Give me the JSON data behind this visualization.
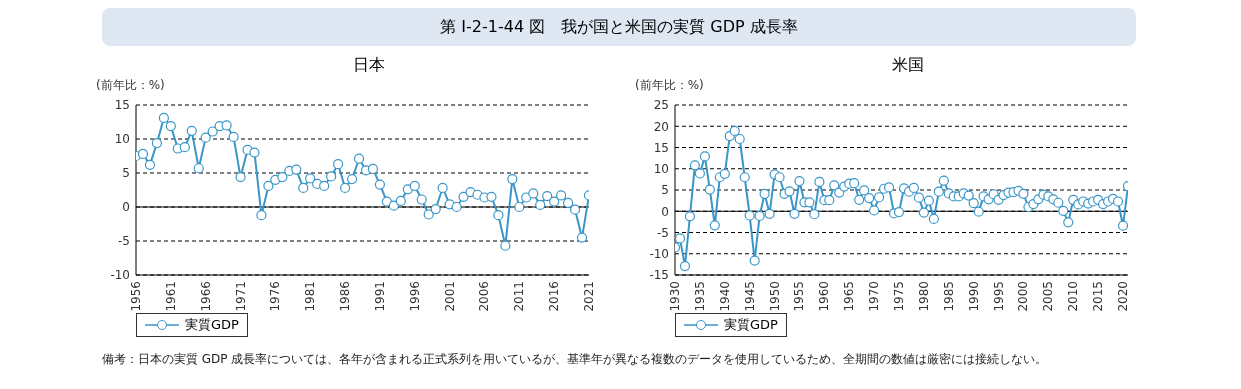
{
  "chart_data": [
    {
      "type": "other",
      "title": "第 Ⅰ-2-1-44 図　我が国と米国の実質 GDP 成長率",
      "annotations": [
        "備考：日本の実質 GDP 成長率については、各年が含まれる正式系列を用いているが、基準年が異なる複数のデータを使用しているため、全期間の数値は厳密には接続しない。"
      ]
    },
    {
      "type": "line",
      "title": "日本",
      "ylabel": "(前年比：%)",
      "marker": "circle",
      "grid": "y",
      "legend": "bottom left",
      "x": [
        1956,
        1957,
        1958,
        1959,
        1960,
        1961,
        1962,
        1963,
        1964,
        1965,
        1966,
        1967,
        1968,
        1969,
        1970,
        1971,
        1972,
        1973,
        1974,
        1975,
        1976,
        1977,
        1978,
        1979,
        1980,
        1981,
        1982,
        1983,
        1984,
        1985,
        1986,
        1987,
        1988,
        1989,
        1990,
        1991,
        1992,
        1993,
        1994,
        1995,
        1996,
        1997,
        1998,
        1999,
        2000,
        2001,
        2002,
        2003,
        2004,
        2005,
        2006,
        2007,
        2008,
        2009,
        2010,
        2011,
        2012,
        2013,
        2014,
        2015,
        2016,
        2017,
        2018,
        2019,
        2020,
        2021
      ],
      "series": [
        {
          "name": "実質GDP",
          "color": "#3a96c8",
          "values": [
            7.5,
            7.8,
            6.2,
            9.4,
            13.1,
            11.9,
            8.6,
            8.8,
            11.2,
            5.7,
            10.2,
            11.1,
            11.9,
            12.0,
            10.3,
            4.4,
            8.4,
            8.0,
            -1.2,
            3.1,
            4.0,
            4.4,
            5.3,
            5.5,
            2.8,
            4.2,
            3.4,
            3.1,
            4.5,
            6.3,
            2.8,
            4.1,
            7.1,
            5.4,
            5.6,
            3.3,
            0.8,
            0.2,
            0.9,
            2.6,
            3.1,
            1.1,
            -1.1,
            -0.3,
            2.8,
            0.4,
            0.0,
            1.5,
            2.2,
            1.8,
            1.4,
            1.5,
            -1.2,
            -5.7,
            4.1,
            0.0,
            1.4,
            2.0,
            0.3,
            1.6,
            0.8,
            1.7,
            0.6,
            -0.4,
            -4.5,
            1.7
          ]
        }
      ],
      "xlim": [
        1956,
        2021
      ],
      "xticks": [
        1956,
        1961,
        1966,
        1971,
        1976,
        1981,
        1986,
        1991,
        1996,
        2001,
        2006,
        2011,
        2016,
        2021
      ],
      "ylim": [
        -10,
        15
      ],
      "yticks": [
        -10,
        -5,
        0,
        5,
        10,
        15
      ],
      "ref_lines": [
        {
          "axis": "y",
          "value": 0,
          "color": "#000000",
          "line_style": "solid"
        }
      ]
    },
    {
      "type": "line",
      "title": "米国",
      "ylabel": "(前年比：%)",
      "marker": "circle",
      "grid": "y",
      "legend": "bottom left",
      "x": [
        1930,
        1931,
        1932,
        1933,
        1934,
        1935,
        1936,
        1937,
        1938,
        1939,
        1940,
        1941,
        1942,
        1943,
        1944,
        1945,
        1946,
        1947,
        1948,
        1949,
        1950,
        1951,
        1952,
        1953,
        1954,
        1955,
        1956,
        1957,
        1958,
        1959,
        1960,
        1961,
        1962,
        1963,
        1964,
        1965,
        1966,
        1967,
        1968,
        1969,
        1970,
        1971,
        1972,
        1973,
        1974,
        1975,
        1976,
        1977,
        1978,
        1979,
        1980,
        1981,
        1982,
        1983,
        1984,
        1985,
        1986,
        1987,
        1988,
        1989,
        1990,
        1991,
        1992,
        1993,
        1994,
        1995,
        1996,
        1997,
        1998,
        1999,
        2000,
        2001,
        2002,
        2003,
        2004,
        2005,
        2006,
        2007,
        2008,
        2009,
        2010,
        2011,
        2012,
        2013,
        2014,
        2015,
        2016,
        2017,
        2018,
        2019,
        2020,
        2021
      ],
      "series": [
        {
          "name": "実質GDP",
          "color": "#3a96c8",
          "values": [
            -8.5,
            -6.4,
            -12.9,
            -1.2,
            10.8,
            8.9,
            12.9,
            5.1,
            -3.3,
            8.0,
            8.8,
            17.7,
            18.9,
            17.0,
            8.0,
            -1.0,
            -11.6,
            -1.1,
            4.1,
            -0.6,
            8.7,
            8.0,
            4.1,
            4.7,
            -0.6,
            7.1,
            2.1,
            2.1,
            -0.7,
            6.9,
            2.6,
            2.6,
            6.1,
            4.4,
            5.8,
            6.5,
            6.6,
            2.7,
            4.9,
            3.1,
            0.2,
            3.3,
            5.3,
            5.6,
            -0.5,
            -0.2,
            5.4,
            4.6,
            5.5,
            3.2,
            -0.3,
            2.5,
            -1.8,
            4.6,
            7.2,
            4.2,
            3.5,
            3.5,
            4.2,
            3.7,
            1.9,
            -0.1,
            3.5,
            2.8,
            4.0,
            2.7,
            3.8,
            4.4,
            4.5,
            4.8,
            4.1,
            1.0,
            1.7,
            2.8,
            3.9,
            3.5,
            2.8,
            2.0,
            0.1,
            -2.6,
            2.7,
            1.6,
            2.3,
            1.8,
            2.3,
            2.7,
            1.7,
            2.3,
            2.9,
            2.3,
            -3.4,
            5.9
          ]
        }
      ],
      "xlim": [
        1930,
        2021
      ],
      "xticks": [
        1930,
        1935,
        1940,
        1945,
        1950,
        1955,
        1960,
        1965,
        1970,
        1975,
        1980,
        1985,
        1990,
        1995,
        2000,
        2005,
        2010,
        2015,
        2020
      ],
      "ylim": [
        -15,
        25
      ],
      "yticks": [
        -15,
        -10,
        -5,
        0,
        5,
        10,
        15,
        20,
        25
      ],
      "ref_lines": [
        {
          "axis": "y",
          "value": 0,
          "color": "#000000",
          "line_style": "solid"
        }
      ]
    }
  ]
}
